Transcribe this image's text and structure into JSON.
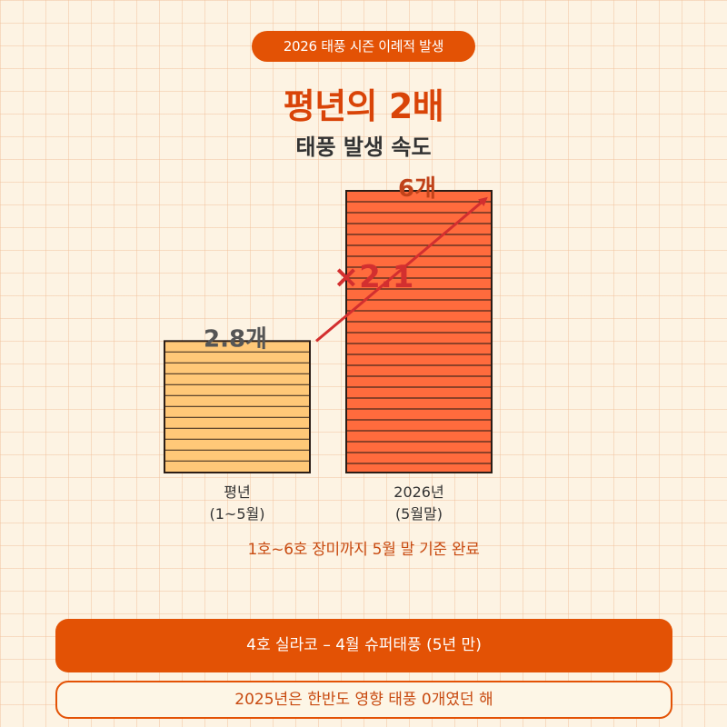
{
  "header": {
    "tag": "2026 태풍 시즌 이례적 발생",
    "title": "평년의 2배",
    "subtitle": "태풍 발생 속도"
  },
  "chart_data": {
    "type": "bar",
    "categories": [
      [
        "평년",
        "(1~5월)"
      ],
      [
        "2026년",
        "(5월말)"
      ]
    ],
    "values": [
      2.8,
      6
    ],
    "value_labels": [
      "2.8개",
      "6개"
    ],
    "ylim": [
      0,
      6
    ],
    "multiplier_label": "×2.1",
    "colors": {
      "bar_1": "#ffc878",
      "bar_2": "#ff6b3d",
      "arrow": "#d32f2f",
      "value_1": "#555555",
      "value_2": "#c0421a"
    }
  },
  "note": "1호~6호 장미까지 5월 말 기준 완료",
  "banner": "4호 실라코 – 4월 슈퍼태풍 (5년 만)",
  "info_box": "2025년은 한반도 영향 태풍 0개였던 해",
  "colors": {
    "accent": "#e35205",
    "background": "#fdf3e3"
  }
}
